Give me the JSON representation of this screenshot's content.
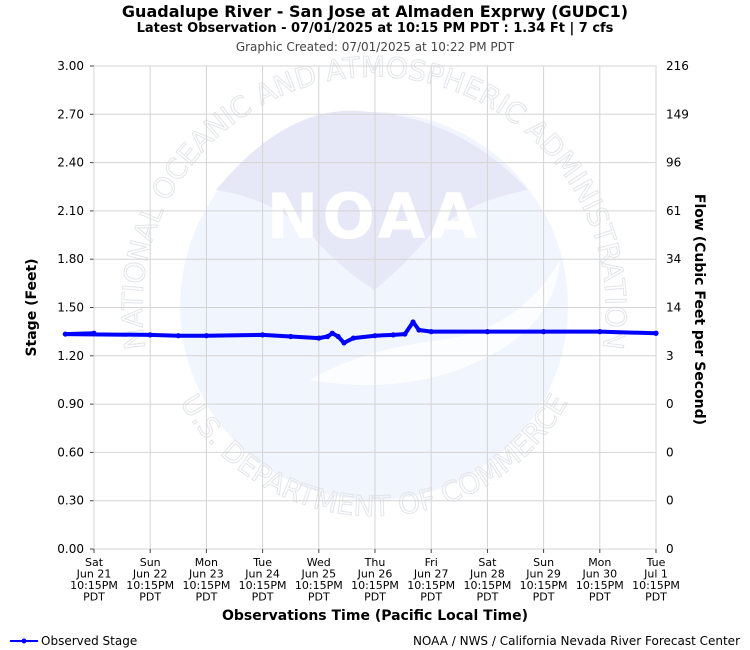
{
  "header": {
    "title": "Guadalupe River - San Jose at Almaden Exprwy (GUDC1)",
    "subtitle": "Latest Observation - 07/01/2025 at 10:15 PM PDT : 1.34 Ft | 7 cfs",
    "created": "Graphic Created: 07/01/2025 at 10:22 PM PDT"
  },
  "watermark": {
    "logo_text": "NOAA",
    "ring_top": "NATIONAL OCEANIC AND ATMOSPHERIC ADMINISTRATION",
    "ring_bottom": "U.S. DEPARTMENT OF COMMERCE"
  },
  "footer": {
    "legend_label": "Observed Stage",
    "credit": "NOAA / NWS / California Nevada River Forecast Center"
  },
  "chart_data": {
    "type": "line",
    "xlabel": "Observations Time (Pacific Local Time)",
    "ylabel": "Stage (Feet)",
    "y2label": "Flow (Cubic Feet per Second)",
    "ylim": [
      0,
      3
    ],
    "y_ticks": [
      "0.00",
      "0.30",
      "0.60",
      "0.90",
      "1.20",
      "1.50",
      "1.80",
      "2.10",
      "2.40",
      "2.70",
      "3.00"
    ],
    "y2_ticks": [
      "0",
      "0",
      "0",
      "0",
      "3",
      "14",
      "34",
      "61",
      "96",
      "149",
      "216"
    ],
    "x_ticks": [
      [
        "Sat",
        "Jun 21",
        "10:15PM",
        "PDT"
      ],
      [
        "Sun",
        "Jun 22",
        "10:15PM",
        "PDT"
      ],
      [
        "Mon",
        "Jun 23",
        "10:15PM",
        "PDT"
      ],
      [
        "Tue",
        "Jun 24",
        "10:15PM",
        "PDT"
      ],
      [
        "Wed",
        "Jun 25",
        "10:15PM",
        "PDT"
      ],
      [
        "Thu",
        "Jun 26",
        "10:15PM",
        "PDT"
      ],
      [
        "Fri",
        "Jun 27",
        "10:15PM",
        "PDT"
      ],
      [
        "Sat",
        "Jun 28",
        "10:15PM",
        "PDT"
      ],
      [
        "Sun",
        "Jun 29",
        "10:15PM",
        "PDT"
      ],
      [
        "Mon",
        "Jun 30",
        "10:15PM",
        "PDT"
      ],
      [
        "Tue",
        "Jul 1",
        "10:15PM",
        "PDT"
      ]
    ],
    "grid": true,
    "legend_position": "bottom-left",
    "series": [
      {
        "name": "Observed Stage",
        "color": "#0000ff",
        "points": [
          [
            "Jun 21 10:15PM",
            1.34
          ],
          [
            "Jun 21 10:00AM",
            1.335
          ],
          [
            "Jun 22 10:15PM",
            1.33
          ],
          [
            "Jun 23 10:15AM",
            1.325
          ],
          [
            "Jun 23 10:15PM",
            1.325
          ],
          [
            "Jun 24 10:15PM",
            1.33
          ],
          [
            "Jun 25 10:15AM",
            1.32
          ],
          [
            "Jun 25 10:15PM",
            1.31
          ],
          [
            "Jun 26 02:00AM",
            1.32
          ],
          [
            "Jun 26 04:00AM",
            1.34
          ],
          [
            "Jun 26 06:30AM",
            1.32
          ],
          [
            "Jun 26 09:00AM",
            1.28
          ],
          [
            "Jun 26 01:00PM",
            1.31
          ],
          [
            "Jun 26 10:15PM",
            1.325
          ],
          [
            "Jun 27 06:00AM",
            1.33
          ],
          [
            "Jun 27 11:00AM",
            1.335
          ],
          [
            "Jun 27 02:30PM",
            1.41
          ],
          [
            "Jun 27 05:00PM",
            1.36
          ],
          [
            "Jun 27 10:15PM",
            1.35
          ],
          [
            "Jun 28 10:15PM",
            1.35
          ],
          [
            "Jun 29 10:15PM",
            1.35
          ],
          [
            "Jun 30 10:15PM",
            1.35
          ],
          [
            "Jul 1 10:15PM",
            1.34
          ]
        ]
      }
    ]
  }
}
